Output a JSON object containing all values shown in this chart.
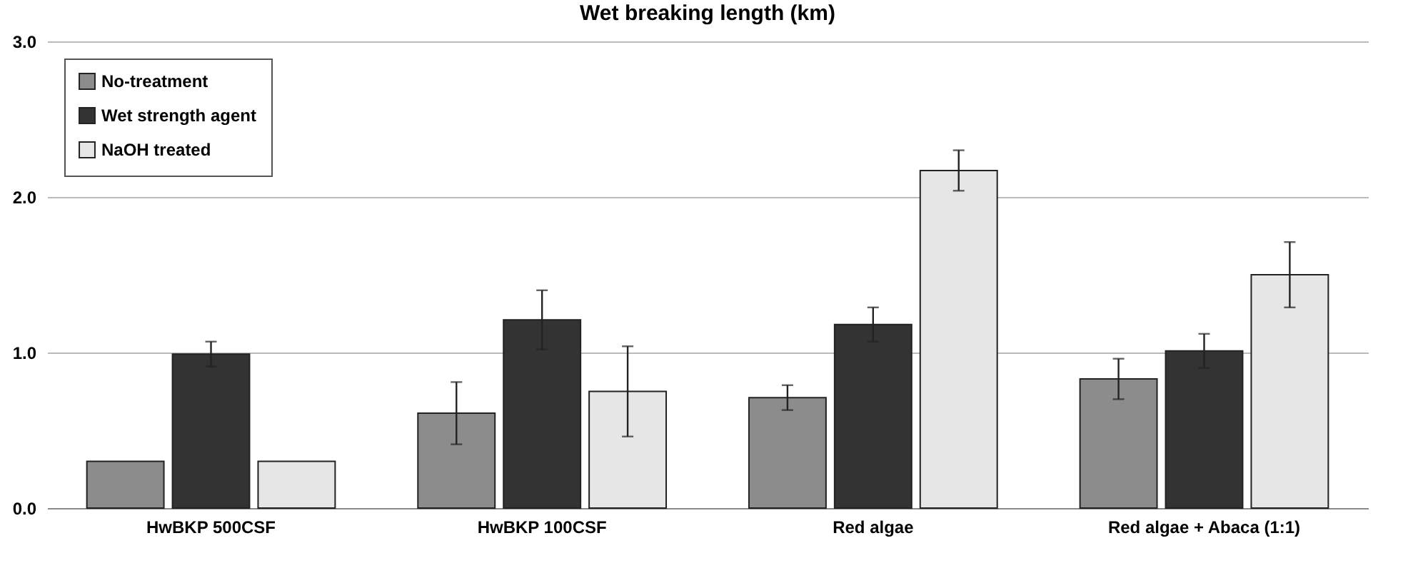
{
  "chart_data": {
    "type": "bar",
    "title": "Wet breaking length (km)",
    "categories": [
      "HwBKP 500CSF",
      "HwBKP 100CSF",
      "Red algae",
      "Red algae + Abaca (1:1)"
    ],
    "series": [
      {
        "name": "No-treatment",
        "color": "#8c8c8c",
        "values": [
          0.3,
          0.61,
          0.71,
          0.83
        ],
        "errors": [
          null,
          0.2,
          0.08,
          0.13
        ]
      },
      {
        "name": "Wet strength agent",
        "color": "#333333",
        "values": [
          0.99,
          1.21,
          1.18,
          1.01
        ],
        "errors": [
          0.08,
          0.19,
          0.11,
          0.11
        ]
      },
      {
        "name": "NaOH treated",
        "color": "#e6e6e6",
        "values": [
          0.3,
          0.75,
          2.17,
          1.5
        ],
        "errors": [
          null,
          0.29,
          0.13,
          0.21
        ]
      }
    ],
    "ylim": [
      0,
      3
    ],
    "yticks": [
      {
        "value": 0,
        "label": "0.0"
      },
      {
        "value": 1,
        "label": "1.0"
      },
      {
        "value": 2,
        "label": "2.0"
      },
      {
        "value": 3,
        "label": "3.0"
      }
    ],
    "grid": "y",
    "legend": "top left"
  }
}
